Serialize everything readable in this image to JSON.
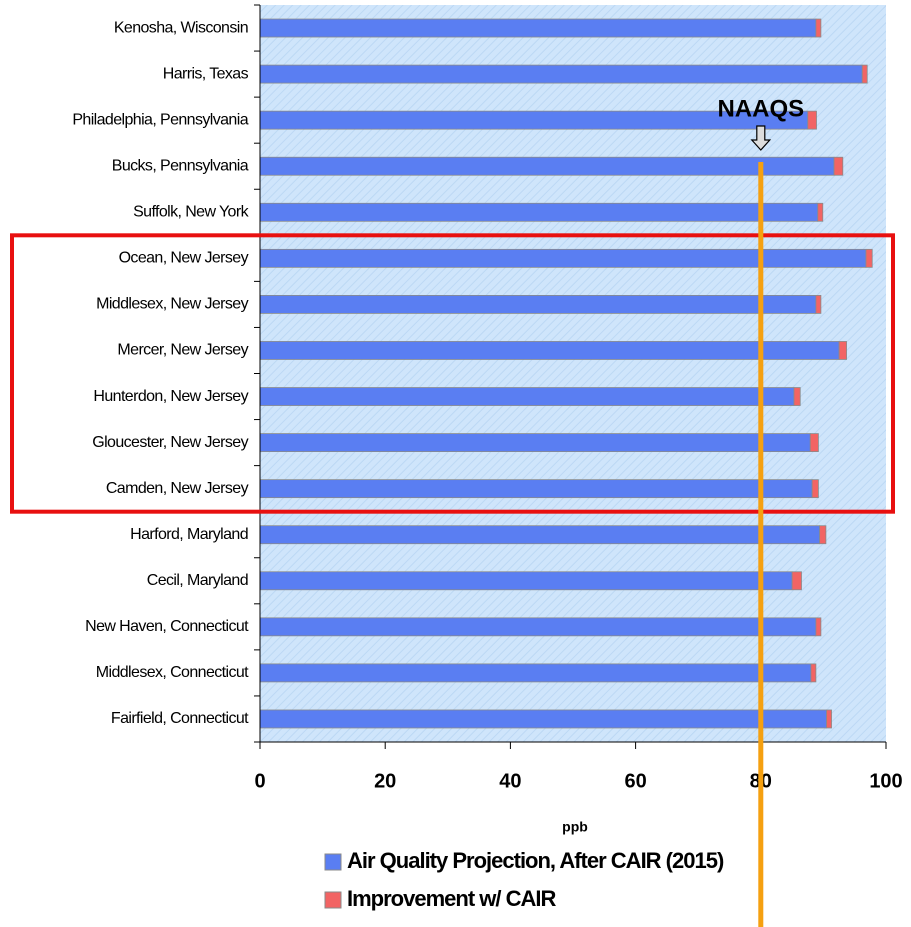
{
  "chart_data": {
    "type": "stacked-bar-horizontal",
    "categories": [
      "Kenosha, Wisconsin",
      "Harris, Texas",
      "Philadelphia, Pennsylvania",
      "Bucks, Pennsylvania",
      "Suffolk, New York",
      "Ocean, New Jersey",
      "Middlesex, New Jersey",
      "Mercer, New Jersey",
      "Hunterdon, New Jersey",
      "Gloucester, New Jersey",
      "Camden, New Jersey",
      "Harford, Maryland",
      "Cecil, Maryland",
      "New Haven, Connecticut",
      "Middlesex, Connecticut",
      "Fairfield, Connecticut"
    ],
    "series": [
      {
        "name": "Air Quality Projection, After CAIR (2015)",
        "color": "#5a7ef2",
        "values": [
          88.8,
          96.2,
          87.5,
          91.7,
          89.1,
          96.8,
          88.8,
          92.5,
          85.3,
          87.9,
          88.2,
          89.4,
          85.0,
          88.8,
          88.0,
          90.5
        ]
      },
      {
        "name": "Improvement w/ CAIR",
        "color": "#f26464",
        "values": [
          0.8,
          0.8,
          1.4,
          1.4,
          0.8,
          1.0,
          0.8,
          1.2,
          1.0,
          1.3,
          1.0,
          1.0,
          1.5,
          0.8,
          0.8,
          0.8
        ]
      }
    ],
    "xlabel": "ppb",
    "xlim": [
      0,
      100
    ],
    "xticks": [
      0,
      20,
      40,
      60,
      80,
      100
    ],
    "reference_line": {
      "value": 80,
      "label": "NAAQS",
      "color": "#f5a010"
    },
    "legend": "bottom"
  }
}
